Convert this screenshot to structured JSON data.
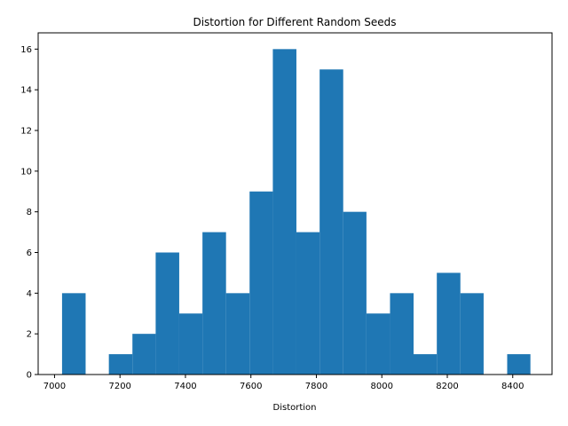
{
  "chart_data": {
    "type": "bar",
    "title": "Distortion for Different Random Seeds",
    "xlabel": "Distortion",
    "ylabel": "",
    "xlim": [
      6950,
      8520
    ],
    "ylim": [
      0,
      16.8
    ],
    "bar_color": "#1f77b4",
    "grid": false,
    "x_ticks": [
      7000,
      7200,
      7400,
      7600,
      7800,
      8000,
      8200,
      8400
    ],
    "y_ticks": [
      0,
      2,
      4,
      6,
      8,
      10,
      12,
      14,
      16
    ],
    "bins": [
      {
        "start": 7023,
        "end": 7095,
        "count": 4
      },
      {
        "start": 7095,
        "end": 7166,
        "count": 0
      },
      {
        "start": 7166,
        "end": 7238,
        "count": 1
      },
      {
        "start": 7238,
        "end": 7309,
        "count": 2
      },
      {
        "start": 7309,
        "end": 7381,
        "count": 6
      },
      {
        "start": 7381,
        "end": 7452,
        "count": 3
      },
      {
        "start": 7452,
        "end": 7524,
        "count": 7
      },
      {
        "start": 7524,
        "end": 7596,
        "count": 4
      },
      {
        "start": 7596,
        "end": 7667,
        "count": 9
      },
      {
        "start": 7667,
        "end": 7739,
        "count": 16
      },
      {
        "start": 7739,
        "end": 7810,
        "count": 7
      },
      {
        "start": 7810,
        "end": 7882,
        "count": 15
      },
      {
        "start": 7882,
        "end": 7953,
        "count": 8
      },
      {
        "start": 7953,
        "end": 8025,
        "count": 3
      },
      {
        "start": 8025,
        "end": 8097,
        "count": 4
      },
      {
        "start": 8097,
        "end": 8168,
        "count": 1
      },
      {
        "start": 8168,
        "end": 8240,
        "count": 5
      },
      {
        "start": 8240,
        "end": 8311,
        "count": 4
      },
      {
        "start": 8311,
        "end": 8383,
        "count": 0
      },
      {
        "start": 8383,
        "end": 8454,
        "count": 1
      }
    ]
  }
}
